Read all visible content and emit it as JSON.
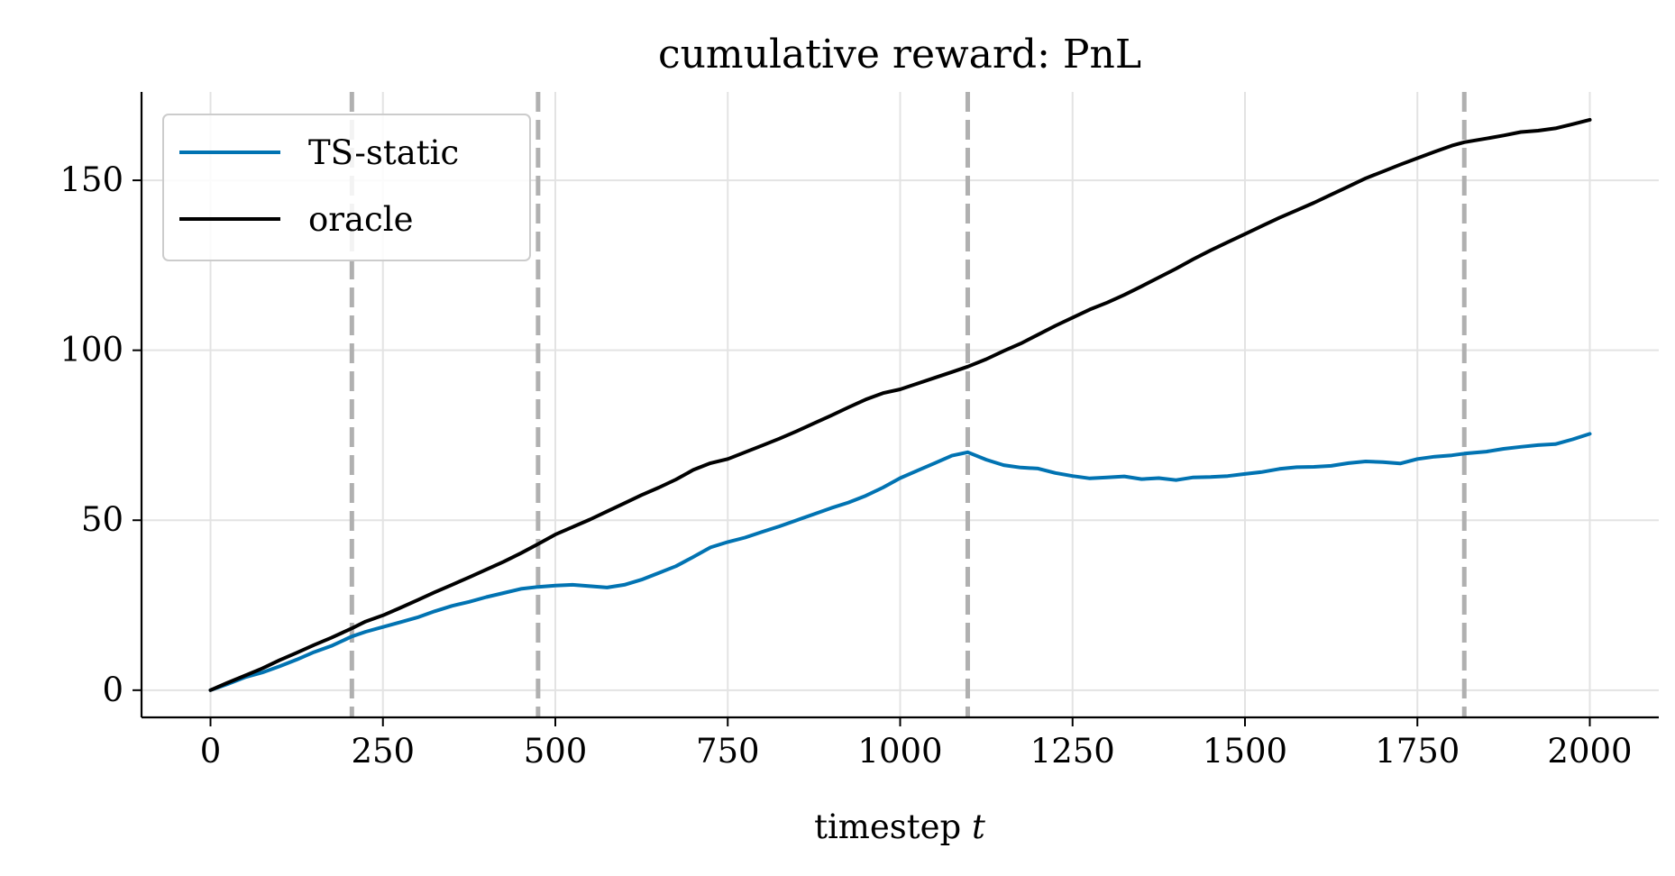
{
  "chart_data": {
    "type": "line",
    "title": "cumulative reward: PnL",
    "xlabel": "timestep ",
    "xlabel_var": "t",
    "ylabel": "",
    "xlim": [
      -100,
      2100
    ],
    "ylim": [
      -8,
      176
    ],
    "xticks": [
      0,
      250,
      500,
      750,
      1000,
      1250,
      1500,
      1750,
      2000
    ],
    "yticks": [
      0,
      50,
      100,
      150
    ],
    "grid": true,
    "legend_position": "upper-left",
    "changepoints": [
      205,
      475,
      1098,
      1818
    ],
    "changepoint_color": "#b0b0b0",
    "series": [
      {
        "name": "TS-static",
        "color": "#0173b2",
        "x": [
          0,
          25,
          50,
          75,
          100,
          125,
          150,
          175,
          205,
          225,
          250,
          275,
          300,
          325,
          350,
          375,
          400,
          425,
          450,
          475,
          500,
          525,
          550,
          575,
          600,
          625,
          650,
          675,
          700,
          725,
          750,
          775,
          800,
          825,
          850,
          875,
          900,
          925,
          950,
          975,
          1000,
          1025,
          1050,
          1075,
          1098,
          1125,
          1150,
          1175,
          1200,
          1225,
          1250,
          1275,
          1300,
          1325,
          1350,
          1375,
          1400,
          1425,
          1450,
          1475,
          1500,
          1525,
          1550,
          1575,
          1600,
          1625,
          1650,
          1675,
          1700,
          1725,
          1750,
          1775,
          1800,
          1818,
          1850,
          1875,
          1900,
          1925,
          1950,
          1975,
          2000
        ],
        "y": [
          0,
          1.8,
          3.8,
          5.2,
          7.0,
          9.0,
          11.2,
          13.0,
          15.8,
          17.2,
          18.6,
          20.0,
          21.4,
          23.2,
          24.8,
          26.0,
          27.4,
          28.6,
          29.8,
          30.4,
          30.8,
          31.0,
          30.6,
          30.2,
          31.0,
          32.5,
          34.5,
          36.5,
          39.2,
          42.0,
          43.6,
          44.9,
          46.6,
          48.2,
          50.0,
          51.8,
          53.6,
          55.2,
          57.2,
          59.6,
          62.4,
          64.6,
          66.8,
          69.0,
          70.0,
          67.8,
          66.2,
          65.5,
          65.2,
          63.9,
          63.0,
          62.3,
          62.6,
          62.9,
          62.1,
          62.4,
          61.8,
          62.6,
          62.7,
          63.0,
          63.6,
          64.2,
          65.1,
          65.6,
          65.7,
          66.0,
          66.8,
          67.3,
          67.1,
          66.7,
          68.0,
          68.7,
          69.1,
          69.6,
          70.2,
          71.0,
          71.6,
          72.1,
          72.4,
          73.8,
          75.4
        ]
      },
      {
        "name": "oracle",
        "color": "#000000",
        "x": [
          0,
          25,
          50,
          75,
          100,
          125,
          150,
          175,
          205,
          225,
          250,
          275,
          300,
          325,
          350,
          375,
          400,
          425,
          450,
          475,
          500,
          525,
          550,
          575,
          600,
          625,
          650,
          675,
          700,
          725,
          750,
          775,
          800,
          825,
          850,
          875,
          900,
          925,
          950,
          975,
          1000,
          1025,
          1050,
          1075,
          1098,
          1125,
          1150,
          1175,
          1200,
          1225,
          1250,
          1275,
          1300,
          1325,
          1350,
          1375,
          1400,
          1425,
          1450,
          1475,
          1500,
          1525,
          1550,
          1575,
          1600,
          1625,
          1650,
          1675,
          1700,
          1725,
          1750,
          1775,
          1800,
          1818,
          1850,
          1875,
          1900,
          1925,
          1950,
          1975,
          2000
        ],
        "y": [
          0,
          2.2,
          4.3,
          6.4,
          8.8,
          11.0,
          13.3,
          15.4,
          18.2,
          20.2,
          22.0,
          24.2,
          26.5,
          28.8,
          31.0,
          33.2,
          35.5,
          37.8,
          40.3,
          43.0,
          45.8,
          48.0,
          50.2,
          52.6,
          55.0,
          57.4,
          59.6,
          62.0,
          64.8,
          66.8,
          68.0,
          70.0,
          72.0,
          74.0,
          76.2,
          78.5,
          80.8,
          83.2,
          85.5,
          87.4,
          88.5,
          90.2,
          91.9,
          93.6,
          95.2,
          97.4,
          99.8,
          102.0,
          104.6,
          107.2,
          109.6,
          112.0,
          114.0,
          116.3,
          118.8,
          121.4,
          124.0,
          126.8,
          129.4,
          131.8,
          134.2,
          136.6,
          139.0,
          141.2,
          143.4,
          145.8,
          148.2,
          150.6,
          152.6,
          154.6,
          156.5,
          158.4,
          160.2,
          161.2,
          162.3,
          163.2,
          164.2,
          164.6,
          165.3,
          166.5,
          167.8
        ]
      }
    ]
  }
}
